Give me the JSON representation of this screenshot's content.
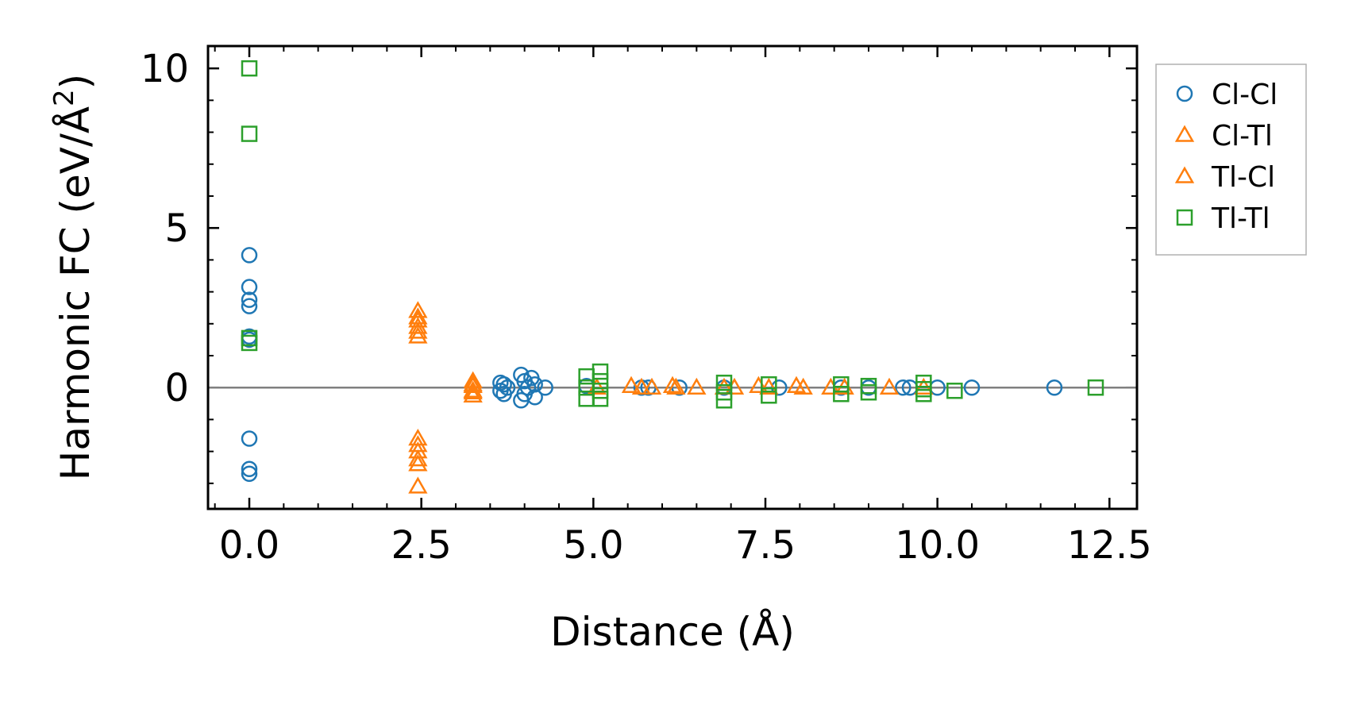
{
  "chart_data": {
    "type": "scatter",
    "xlabel": "Distance (Å)",
    "ylabel_main": "Harmonic FC (eV/Å",
    "ylabel_sup": "2",
    "ylabel_close": ")",
    "xlim": [
      -0.6,
      12.9
    ],
    "ylim": [
      -3.8,
      10.7
    ],
    "xticks": [
      0.0,
      2.5,
      5.0,
      7.5,
      10.0,
      12.5
    ],
    "xtick_labels": [
      "0.0",
      "2.5",
      "5.0",
      "7.5",
      "10.0",
      "12.5"
    ],
    "yticks": [
      0,
      5,
      10
    ],
    "ytick_labels": [
      "0",
      "5",
      "10"
    ],
    "reference_line": 0,
    "legend_position": "outside-right-top",
    "series": [
      {
        "name": "Cl-Cl",
        "color": "#1f77b4",
        "marker": "circle",
        "x": [
          0.0,
          0.0,
          0.0,
          0.0,
          0.0,
          0.0,
          0.0,
          0.0,
          0.0,
          3.65,
          3.65,
          3.7,
          3.7,
          3.75,
          3.95,
          3.95,
          4.0,
          4.0,
          4.05,
          4.1,
          4.15,
          4.15,
          4.3,
          4.9,
          5.7,
          5.8,
          6.25,
          6.9,
          7.7,
          8.6,
          9.0,
          9.5,
          9.6,
          10.0,
          10.5,
          11.7
        ],
        "y": [
          4.15,
          3.15,
          2.75,
          2.55,
          1.6,
          1.5,
          -1.6,
          -2.55,
          -2.7,
          0.15,
          -0.1,
          0.1,
          -0.2,
          0.0,
          0.4,
          -0.4,
          0.2,
          -0.2,
          0.0,
          0.3,
          -0.3,
          0.1,
          0.0,
          0.05,
          0.0,
          0.0,
          0.0,
          0.0,
          0.0,
          0.0,
          0.0,
          0.0,
          0.0,
          0.0,
          0.0,
          0.0
        ]
      },
      {
        "name": "Cl-Tl",
        "color": "#ff7f0e",
        "marker": "triangle",
        "x": [
          2.45,
          2.45,
          2.45,
          2.45,
          2.45,
          2.45,
          2.45,
          2.45,
          3.25,
          3.25,
          3.25,
          3.25,
          5.55,
          5.85,
          6.15,
          6.5,
          6.9,
          7.4,
          7.95,
          8.45
        ],
        "y": [
          2.4,
          2.1,
          1.75,
          1.6,
          -1.6,
          -2.0,
          -2.4,
          -3.1,
          0.2,
          0.05,
          -0.1,
          -0.25,
          0.05,
          0.0,
          0.05,
          0.0,
          0.0,
          0.05,
          0.05,
          0.0
        ]
      },
      {
        "name": "Tl-Cl",
        "color": "#ff7f0e",
        "marker": "triangle",
        "x": [
          2.45,
          2.45,
          2.45,
          2.45,
          3.25,
          3.25,
          5.05,
          5.7,
          6.2,
          7.05,
          7.55,
          8.05,
          8.65,
          9.3,
          9.8
        ],
        "y": [
          2.2,
          1.9,
          -1.8,
          -2.25,
          0.1,
          -0.15,
          0.0,
          0.0,
          0.0,
          0.0,
          0.0,
          0.0,
          0.0,
          0.0,
          0.0
        ]
      },
      {
        "name": "Tl-Tl",
        "color": "#2ca02c",
        "marker": "square",
        "x": [
          0.0,
          0.0,
          0.0,
          0.0,
          4.9,
          4.9,
          4.9,
          5.1,
          5.1,
          5.1,
          5.1,
          6.9,
          6.9,
          6.9,
          7.55,
          7.55,
          8.6,
          8.6,
          9.0,
          9.0,
          9.8,
          9.8,
          9.8,
          10.25,
          12.3
        ],
        "y": [
          10.0,
          7.95,
          1.55,
          1.4,
          0.35,
          0.0,
          -0.35,
          0.5,
          0.2,
          -0.1,
          -0.35,
          0.15,
          -0.15,
          -0.4,
          0.1,
          -0.25,
          0.1,
          -0.2,
          0.05,
          -0.15,
          0.15,
          -0.05,
          -0.2,
          -0.1,
          0.0
        ]
      }
    ]
  }
}
